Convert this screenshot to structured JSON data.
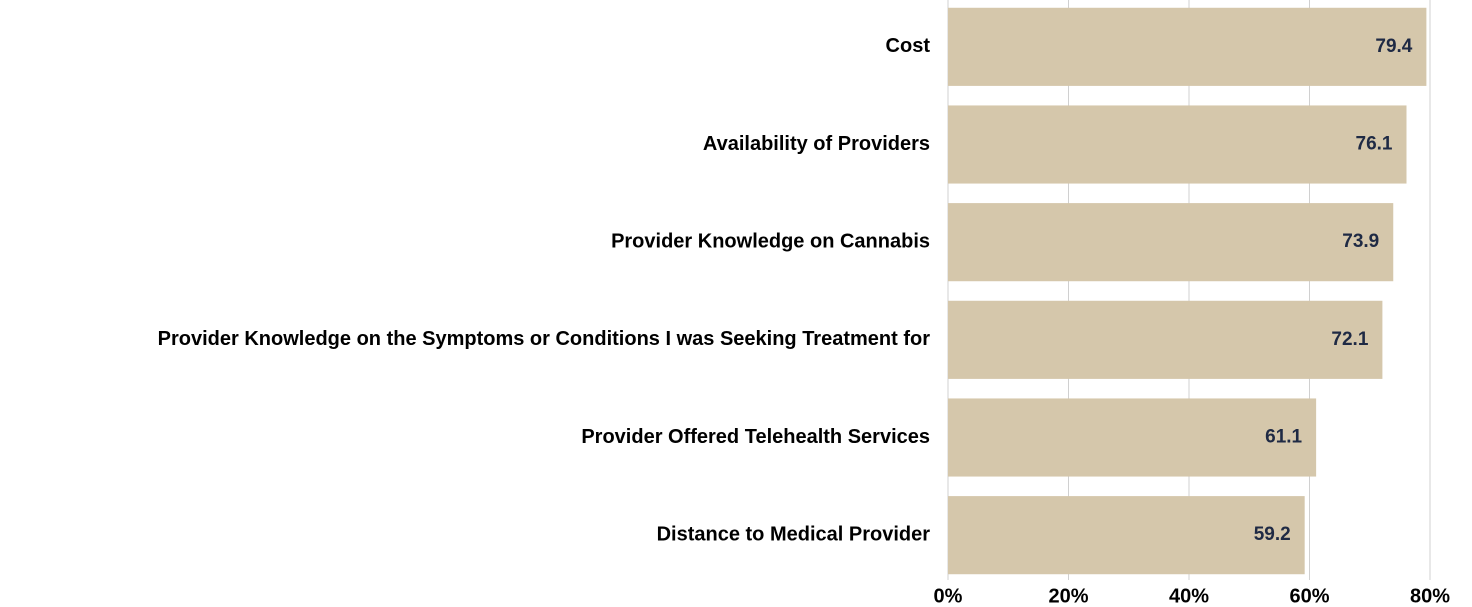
{
  "chart_data": {
    "type": "hbar",
    "categories": [
      "Cost",
      "Availability of Providers",
      "Provider Knowledge on Cannabis",
      "Provider Knowledge on the Symptoms or Conditions I was Seeking Treatment for",
      "Provider Offered Telehealth Services",
      "Distance to Medical Provider"
    ],
    "values": [
      79.4,
      76.1,
      73.9,
      72.1,
      61.1,
      59.2
    ],
    "color": "#d5c7ab",
    "label_color": "#1f2a44",
    "xlim": [
      0,
      80
    ],
    "xticks": [
      {
        "value": 0,
        "label": "0%"
      },
      {
        "value": 20,
        "label": "20%"
      },
      {
        "value": 40,
        "label": "40%"
      },
      {
        "value": 60,
        "label": "60%"
      },
      {
        "value": 80,
        "label": "80%"
      }
    ],
    "grid": true
  }
}
